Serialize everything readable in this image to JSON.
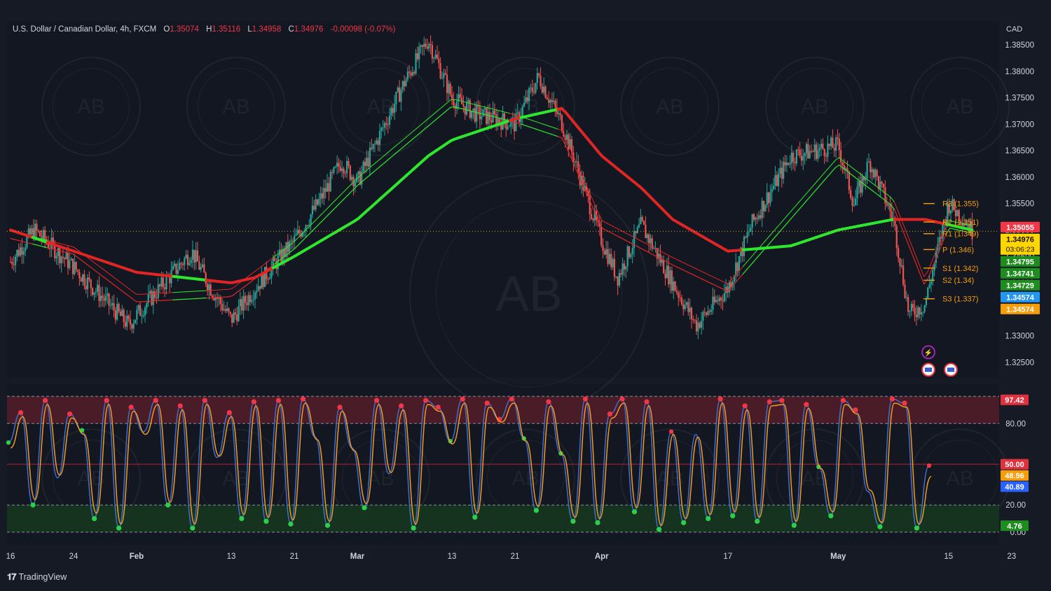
{
  "header": {
    "symbol": "U.S. Dollar / Canadian Dollar, 4h, FXCM",
    "open_label": "O",
    "open": "1.35074",
    "high_label": "H",
    "high": "1.35116",
    "low_label": "L",
    "low": "1.34958",
    "close_label": "C",
    "close": "1.34976",
    "change": "-0.00098 (-0.07%)"
  },
  "currency": "CAD",
  "brand": "TradingView",
  "watermark_text": "AB",
  "colors": {
    "bg": "#161a25",
    "plot_bg": "#131722",
    "up": "#26a69a",
    "down": "#ef5350",
    "ma_green": "#2ee62e",
    "ma_red": "#e02525",
    "stoch_k": "#3f6fd0",
    "stoch_d": "#f29b22",
    "overbought_fill": "#4a1c28",
    "oversold_fill": "#163320"
  },
  "chart_data": [
    {
      "type": "candlestick",
      "title": "",
      "xlabel": "",
      "ylabel": "",
      "x_ticks": [
        "16",
        "24",
        "Feb",
        "13",
        "21",
        "Mar",
        "13",
        "21",
        "Apr",
        "17",
        "May",
        "15",
        "23"
      ],
      "y_ticks": [
        "1.38500",
        "1.38000",
        "1.37500",
        "1.37000",
        "1.36500",
        "1.36000",
        "1.35500",
        "1.35000",
        "1.34500",
        "1.34000",
        "1.33500",
        "1.33000",
        "1.32500"
      ],
      "ylim": [
        1.322,
        1.3895
      ],
      "grid": false,
      "price_path_anchors": [
        [
          "16",
          1.344
        ],
        [
          "Jan 19",
          1.35
        ],
        [
          "24",
          1.343
        ],
        [
          "Jan 31",
          1.332
        ],
        [
          "Feb",
          1.334
        ],
        [
          "Feb 8",
          1.346
        ],
        [
          "Feb 10",
          1.34
        ],
        [
          "13",
          1.333
        ],
        [
          "Feb 16",
          1.339
        ],
        [
          "21",
          1.348
        ],
        [
          "Feb 24",
          1.355
        ],
        [
          "Feb 27",
          1.363
        ],
        [
          "Mar",
          1.359
        ],
        [
          "Mar 7",
          1.378
        ],
        [
          "Mar 10",
          1.386
        ],
        [
          "13",
          1.375
        ],
        [
          "Mar 16",
          1.372
        ],
        [
          "21",
          1.37
        ],
        [
          "Mar 24",
          1.379
        ],
        [
          "Mar 27",
          1.37
        ],
        [
          "Apr",
          1.348
        ],
        [
          "Apr 3",
          1.341
        ],
        [
          "Apr 6",
          1.351
        ],
        [
          "Apr 10",
          1.34
        ],
        [
          "Apr 13",
          1.332
        ],
        [
          "17",
          1.339
        ],
        [
          "Apr 20",
          1.351
        ],
        [
          "Apr 25",
          1.364
        ],
        [
          "May",
          1.366
        ],
        [
          "May 3",
          1.355
        ],
        [
          "May 5",
          1.363
        ],
        [
          "May 8",
          1.352
        ],
        [
          "May 10",
          1.334
        ],
        [
          "May 12",
          1.336
        ],
        [
          "15",
          1.355
        ],
        [
          "May 17",
          1.352
        ],
        [
          "May 18",
          1.3498
        ]
      ],
      "moving_averages": {
        "fast_ma": [
          [
            "16",
            1.349
          ],
          [
            "24",
            1.346
          ],
          [
            "Feb",
            1.337
          ],
          [
            "13",
            1.338
          ],
          [
            "21",
            1.347
          ],
          [
            "Mar",
            1.359
          ],
          [
            "13",
            1.374
          ],
          [
            "21",
            1.371
          ],
          [
            "Mar 27",
            1.368
          ],
          [
            "Apr",
            1.351
          ],
          [
            "Apr 10",
            1.344
          ],
          [
            "17",
            1.339
          ],
          [
            "May",
            1.363
          ],
          [
            "May 8",
            1.355
          ],
          [
            "May 12",
            1.34
          ],
          [
            "15",
            1.351
          ],
          [
            "May 18",
            1.35
          ]
        ],
        "slow_ma": [
          [
            "16",
            1.35
          ],
          [
            "24",
            1.346
          ],
          [
            "Feb",
            1.342
          ],
          [
            "13",
            1.34
          ],
          [
            "Feb 16",
            1.341
          ],
          [
            "21",
            1.345
          ],
          [
            "Mar",
            1.352
          ],
          [
            "Mar 10",
            1.364
          ],
          [
            "13",
            1.367
          ],
          [
            "21",
            1.371
          ],
          [
            "Mar 27",
            1.373
          ],
          [
            "Apr",
            1.364
          ],
          [
            "Apr 6",
            1.358
          ],
          [
            "Apr 10",
            1.352
          ],
          [
            "17",
            1.346
          ],
          [
            "Apr 25",
            1.347
          ],
          [
            "May",
            1.35
          ],
          [
            "May 8",
            1.352
          ],
          [
            "May 12",
            1.352
          ],
          [
            "May 18",
            1.35
          ]
        ]
      },
      "pivot_levels": [
        {
          "label": "R3 (1.355)",
          "value": 1.355
        },
        {
          "label": "R2 (1.351)",
          "value": 1.3515
        },
        {
          "label": "R1 (1.349)",
          "value": 1.3493
        },
        {
          "label": "P (1.346)",
          "value": 1.3463
        },
        {
          "label": "S1 (1.342)",
          "value": 1.3428
        },
        {
          "label": "S2 (1.34)",
          "value": 1.3405
        },
        {
          "label": "S3 (1.337)",
          "value": 1.337
        }
      ],
      "price_labels": [
        {
          "text": "1.35055",
          "value": 1.35055,
          "color": "#f23645"
        },
        {
          "text": "1.34976",
          "value": 1.34976,
          "color": "#ffd600",
          "countdown": "03:06:23"
        },
        {
          "text": "1.34795",
          "value": 1.34795,
          "color": "#1e8c1e"
        },
        {
          "text": "1.34741",
          "value": 1.34741,
          "color": "#1e8c1e"
        },
        {
          "text": "1.34729",
          "value": 1.34729,
          "color": "#1e8c1e"
        },
        {
          "text": "1.34574",
          "value": 1.34574,
          "color": "#2196f3"
        },
        {
          "text": "1.34574",
          "value": 1.34574,
          "color": "#f59d0b"
        }
      ],
      "event_markers": [
        "lightning-icon",
        "us-flag-icon",
        "us-flag-icon"
      ]
    },
    {
      "type": "line",
      "title": "",
      "xlabel": "",
      "ylabel": "",
      "ylim": [
        0,
        100
      ],
      "y_ticks": [
        "80.00",
        "20.00",
        "0.00"
      ],
      "levels": [
        80,
        50,
        20
      ],
      "series": [
        {
          "values": [
            66,
            88,
            20,
            97,
            40,
            87,
            75,
            10,
            97,
            3,
            92,
            74,
            97,
            20,
            93,
            3,
            97,
            55,
            88,
            10,
            96,
            8,
            97,
            6,
            98,
            70,
            5,
            92,
            62,
            18,
            97,
            43,
            93,
            3,
            97,
            92,
            67,
            98,
            11,
            95,
            83,
            98,
            69,
            16,
            96,
            58,
            8,
            98,
            7,
            87,
            98,
            15,
            96,
            2,
            74,
            7,
            72,
            10,
            98,
            12,
            93,
            8,
            96,
            97,
            5,
            94,
            48,
            12,
            97,
            90,
            30,
            4,
            98,
            95,
            3,
            49
          ]
        },
        {
          "values": [
            62,
            85,
            24,
            94,
            42,
            84,
            72,
            14,
            94,
            6,
            89,
            72,
            94,
            22,
            90,
            6,
            94,
            56,
            85,
            13,
            93,
            11,
            94,
            9,
            95,
            68,
            8,
            89,
            60,
            21,
            94,
            44,
            90,
            6,
            94,
            89,
            65,
            95,
            14,
            92,
            81,
            95,
            67,
            19,
            93,
            57,
            11,
            95,
            10,
            84,
            95,
            18,
            93,
            5,
            72,
            10,
            70,
            13,
            95,
            15,
            90,
            11,
            93,
            94,
            8,
            91,
            47,
            15,
            94,
            87,
            31,
            7,
            95,
            92,
            6,
            41
          ]
        }
      ],
      "value_labels": [
        {
          "text": "97.42",
          "value": 97.42,
          "color": "#e0313f"
        },
        {
          "text": "50.00",
          "value": 50,
          "color": "#e0313f"
        },
        {
          "text": "48.96",
          "value": 48.96,
          "color": "#f59d0b"
        },
        {
          "text": "40.89",
          "value": 40.89,
          "color": "#2962ff"
        },
        {
          "text": "4.76",
          "value": 4.76,
          "color": "#1e8c1e"
        }
      ]
    }
  ]
}
